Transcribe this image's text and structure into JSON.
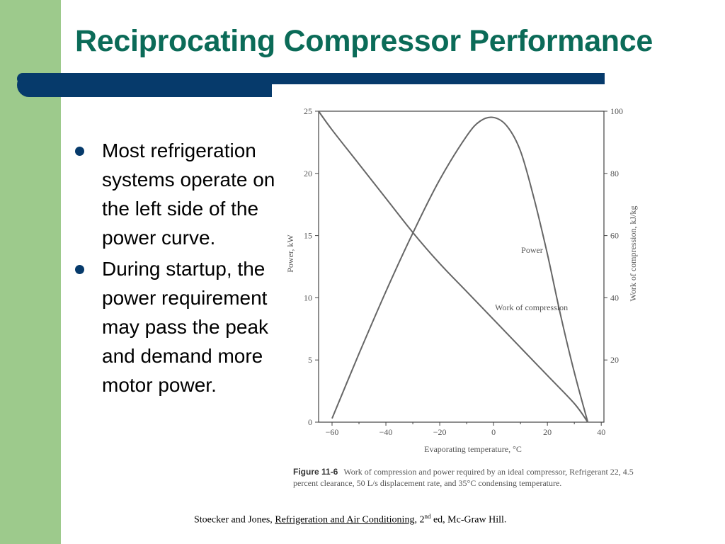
{
  "slide": {
    "title": "Reciprocating Compressor Performance",
    "bullets": [
      "Most refrigeration systems operate on the left side of the power curve.",
      "During startup, the power requirement may pass the peak and demand more motor power."
    ],
    "citation": {
      "authors": "Stoecker and Jones, ",
      "book": "Refrigeration and Air Conditioning",
      "edition_num": ", 2",
      "edition_sup": "nd",
      "rest": " ed, Mc-Graw Hill."
    },
    "colors": {
      "title": "#0b6b58",
      "bar": "#063a6b",
      "side_strip": "#9dca8c",
      "curve": "#666666"
    }
  },
  "chart_data": {
    "type": "line",
    "xlabel": "Evaporating temperature, °C",
    "ylabel_left": "Power, kW",
    "ylabel_right": "Work of compression, kJ/kg",
    "xlim": [
      -65,
      41
    ],
    "ylim_left": [
      0,
      25
    ],
    "ylim_right": [
      0,
      100
    ],
    "x_ticks": [
      -60,
      -40,
      -20,
      0,
      20,
      40
    ],
    "y_ticks_left": [
      0,
      5,
      10,
      15,
      20,
      25
    ],
    "y_ticks_right": [
      20,
      40,
      60,
      80,
      100
    ],
    "grid": false,
    "series": [
      {
        "name": "Power",
        "axis": "left",
        "x": [
          -60,
          -50,
          -40,
          -30,
          -20,
          -10,
          -5,
          0,
          5,
          10,
          15,
          20,
          25,
          30,
          35
        ],
        "y": [
          0.3,
          5.5,
          10.5,
          15.2,
          19.5,
          23.0,
          24.2,
          24.5,
          23.8,
          21.8,
          18.0,
          13.5,
          8.5,
          4.0,
          0
        ]
      },
      {
        "name": "Work of compression",
        "axis": "right",
        "x": [
          -65,
          -60,
          -50,
          -40,
          -30,
          -20,
          -10,
          0,
          10,
          20,
          30,
          35
        ],
        "y": [
          100,
          94,
          83,
          72,
          61,
          51,
          42,
          33,
          24,
          15,
          6,
          0
        ]
      }
    ],
    "caption_label": "Figure 11-6",
    "caption_lines": [
      "Work of compression and power required by an ideal compressor, Refrigerant 22, 4.5",
      "percent clearance, 50 L/s displacement rate, and 35°C condensing temperature."
    ]
  }
}
